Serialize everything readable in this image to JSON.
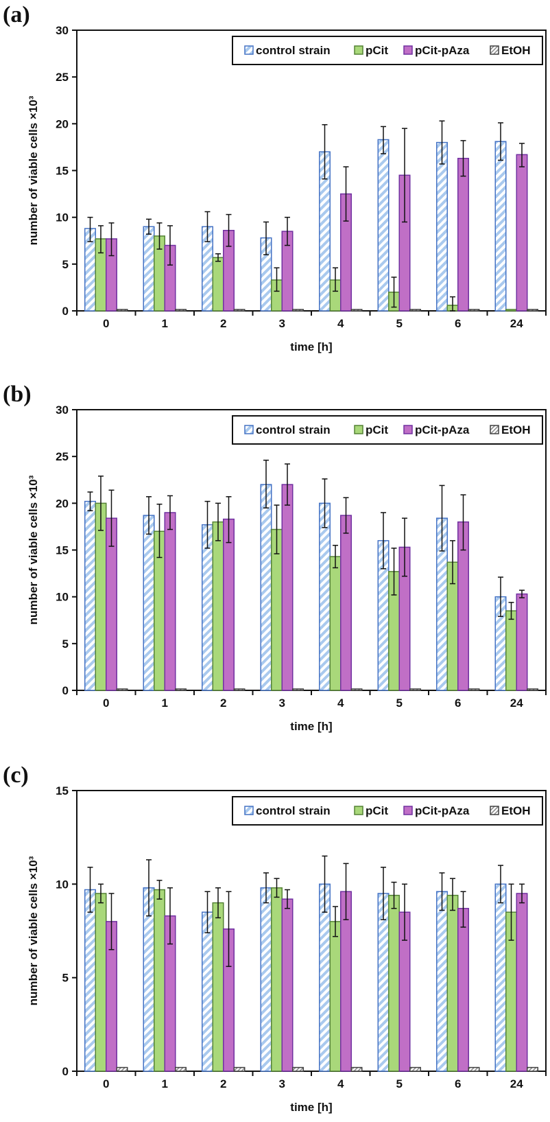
{
  "colors": {
    "control_stroke": "#4472c4",
    "control_hatch": "#a9c9ee",
    "pcit_fill": "#a9d87a",
    "pcit_stroke": "#548235",
    "paza_fill": "#c06fc6",
    "paza_stroke": "#7030a0",
    "etoh_stroke": "#404040",
    "etoh_hatch": "#888888"
  },
  "chart_data": [
    {
      "type": "bar",
      "panel_label": "(a)",
      "xlabel": "time [h]",
      "ylabel": "number of viable cells ×10³",
      "ylim": [
        0,
        30
      ],
      "yticks": [
        0,
        5,
        10,
        15,
        20,
        25,
        30
      ],
      "categories": [
        "0",
        "1",
        "2",
        "3",
        "4",
        "5",
        "6",
        "24"
      ],
      "legend": [
        "control strain",
        "pCit",
        "pCit-pAza",
        "EtOH"
      ],
      "legend_position": "top-right",
      "series": [
        {
          "name": "control strain",
          "values": [
            8.8,
            9.0,
            9.0,
            7.8,
            17.0,
            18.3,
            18.0,
            18.1
          ],
          "err_low": [
            7.4,
            8.2,
            7.4,
            6.0,
            14.1,
            16.8,
            15.7,
            16.1
          ],
          "err_high": [
            10.0,
            9.8,
            10.6,
            9.5,
            19.9,
            19.7,
            20.3,
            20.1
          ]
        },
        {
          "name": "pCit",
          "values": [
            7.7,
            8.0,
            5.7,
            3.3,
            3.3,
            2.0,
            0.6,
            0.15
          ],
          "err_low": [
            6.2,
            6.6,
            5.3,
            2.1,
            2.1,
            0.4,
            0.0,
            null
          ],
          "err_high": [
            9.1,
            9.4,
            6.1,
            4.6,
            4.6,
            3.6,
            1.5,
            null
          ]
        },
        {
          "name": "pCit-pAza",
          "values": [
            7.7,
            7.0,
            8.6,
            8.5,
            12.5,
            14.5,
            16.3,
            16.7
          ],
          "err_low": [
            5.9,
            4.9,
            6.9,
            7.0,
            9.6,
            9.5,
            14.4,
            15.4
          ],
          "err_high": [
            9.4,
            9.1,
            10.3,
            10.0,
            15.4,
            19.5,
            18.2,
            17.9
          ]
        },
        {
          "name": "EtOH",
          "values": [
            0.15,
            0.15,
            0.15,
            0.15,
            0.15,
            0.15,
            0.15,
            0.15
          ],
          "err_low": [
            null,
            null,
            null,
            null,
            null,
            null,
            null,
            null
          ],
          "err_high": [
            null,
            null,
            null,
            null,
            null,
            null,
            null,
            null
          ]
        }
      ]
    },
    {
      "type": "bar",
      "panel_label": "(b)",
      "xlabel": "time [h]",
      "ylabel": "number of viable cells ×10³",
      "ylim": [
        0,
        30
      ],
      "yticks": [
        0,
        5,
        10,
        15,
        20,
        25,
        30
      ],
      "categories": [
        "0",
        "1",
        "2",
        "3",
        "4",
        "5",
        "6",
        "24"
      ],
      "legend": [
        "control strain",
        "pCit",
        "pCit-pAza",
        "EtOH"
      ],
      "legend_position": "top-right",
      "series": [
        {
          "name": "control strain",
          "values": [
            20.2,
            18.7,
            17.7,
            22.0,
            20.0,
            16.0,
            18.4,
            10.0
          ],
          "err_low": [
            19.2,
            16.7,
            15.2,
            19.5,
            17.4,
            13.0,
            14.9,
            7.9
          ],
          "err_high": [
            21.2,
            20.7,
            20.2,
            24.6,
            22.6,
            19.0,
            21.9,
            12.1
          ]
        },
        {
          "name": "pCit",
          "values": [
            20.0,
            17.0,
            18.0,
            17.2,
            14.3,
            12.7,
            13.7,
            8.5
          ],
          "err_low": [
            17.1,
            14.2,
            16.0,
            14.6,
            13.1,
            10.2,
            11.4,
            7.6
          ],
          "err_high": [
            22.9,
            19.9,
            20.0,
            19.8,
            15.5,
            15.2,
            16.0,
            9.4
          ]
        },
        {
          "name": "pCit-pAza",
          "values": [
            18.4,
            19.0,
            18.3,
            22.0,
            18.7,
            15.3,
            18.0,
            10.3
          ],
          "err_low": [
            15.4,
            17.2,
            15.8,
            19.8,
            16.8,
            12.2,
            15.0,
            9.9
          ],
          "err_high": [
            21.4,
            20.8,
            20.7,
            24.2,
            20.6,
            18.4,
            20.9,
            10.7
          ]
        },
        {
          "name": "EtOH",
          "values": [
            0.15,
            0.15,
            0.15,
            0.15,
            0.15,
            0.15,
            0.15,
            0.15
          ],
          "err_low": [
            null,
            null,
            null,
            null,
            null,
            null,
            null,
            null
          ],
          "err_high": [
            null,
            null,
            null,
            null,
            null,
            null,
            null,
            null
          ]
        }
      ]
    },
    {
      "type": "bar",
      "panel_label": "(c)",
      "xlabel": "time [h]",
      "ylabel": "number of viable cells ×10³",
      "ylim": [
        0,
        15
      ],
      "yticks": [
        0,
        5,
        10,
        15
      ],
      "categories": [
        "0",
        "1",
        "2",
        "3",
        "4",
        "5",
        "6",
        "24"
      ],
      "legend": [
        "control strain",
        "pCit",
        "pCit-pAza",
        "EtOH"
      ],
      "legend_position": "top-right",
      "series": [
        {
          "name": "control strain",
          "values": [
            9.7,
            9.8,
            8.5,
            9.8,
            10.0,
            9.5,
            9.6,
            10.0
          ],
          "err_low": [
            8.5,
            8.3,
            7.4,
            9.0,
            8.5,
            8.1,
            8.6,
            9.0
          ],
          "err_high": [
            10.9,
            11.3,
            9.6,
            10.6,
            11.5,
            10.9,
            10.6,
            11.0
          ]
        },
        {
          "name": "pCit",
          "values": [
            9.5,
            9.7,
            9.0,
            9.8,
            8.0,
            9.4,
            9.4,
            8.5
          ],
          "err_low": [
            9.0,
            9.2,
            8.2,
            9.3,
            7.2,
            8.7,
            8.6,
            7.0
          ],
          "err_high": [
            10.0,
            10.2,
            9.8,
            10.3,
            8.8,
            10.1,
            10.3,
            10.0
          ]
        },
        {
          "name": "pCit-pAza",
          "values": [
            8.0,
            8.3,
            7.6,
            9.2,
            9.6,
            8.5,
            8.7,
            9.5
          ],
          "err_low": [
            6.5,
            6.8,
            5.6,
            8.7,
            8.1,
            7.0,
            7.7,
            9.0
          ],
          "err_high": [
            9.5,
            9.8,
            9.6,
            9.7,
            11.1,
            10.0,
            9.6,
            10.0
          ]
        },
        {
          "name": "EtOH",
          "values": [
            0.2,
            0.2,
            0.2,
            0.2,
            0.2,
            0.2,
            0.2,
            0.2
          ],
          "err_low": [
            null,
            null,
            null,
            null,
            null,
            null,
            null,
            null
          ],
          "err_high": [
            null,
            null,
            null,
            null,
            null,
            null,
            null,
            null
          ]
        }
      ]
    }
  ]
}
